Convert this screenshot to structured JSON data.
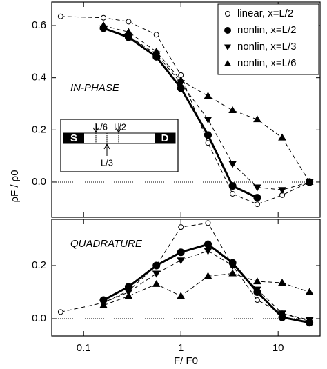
{
  "chart_data": [
    {
      "type": "line",
      "ylabel": "ρF / ρ0",
      "annotation": "IN-PHASE",
      "inset_labels": [
        "S",
        "D",
        "L/6",
        "L/2",
        "L/3"
      ],
      "legend": "upper right",
      "xscale": "log",
      "x": [
        0.058,
        0.16,
        0.29,
        0.56,
        1,
        1.9,
        3.4,
        6.1,
        11,
        21
      ],
      "xlim": [
        0.047,
        27
      ],
      "xticks": [
        0.1,
        1,
        10
      ],
      "ylim": [
        -0.135,
        0.69
      ],
      "yticks": [
        {
          "value": 0,
          "label": "0.0"
        },
        0.2,
        0.4,
        0.6
      ],
      "series": [
        {
          "name": "linear, x=L/2",
          "color": "#000000",
          "marker": "open-circle",
          "linestyle": "dashed",
          "linewidth": 1,
          "values": [
            0.635,
            0.63,
            0.615,
            0.565,
            0.41,
            0.15,
            -0.045,
            -0.085,
            -0.05,
            0.0
          ]
        },
        {
          "name": "nonlin, x=L/2",
          "color": "#000000",
          "marker": "circle",
          "linestyle": "solid",
          "linewidth": 3,
          "values": [
            null,
            0.59,
            0.555,
            0.48,
            0.36,
            0.18,
            -0.015,
            -0.06,
            null,
            0.0
          ]
        },
        {
          "name": "nonlin, x=L/3",
          "color": "#000000",
          "marker": "triangle-down",
          "linestyle": "dashed",
          "linewidth": 1,
          "values": [
            null,
            0.59,
            0.56,
            0.49,
            0.38,
            0.24,
            0.07,
            -0.02,
            -0.03,
            0.0
          ]
        },
        {
          "name": "nonlin, x=L/6",
          "color": "#000000",
          "marker": "triangle-up",
          "linestyle": "dashed",
          "linewidth": 1,
          "values": [
            null,
            0.6,
            0.575,
            0.5,
            0.39,
            0.33,
            0.275,
            0.24,
            0.17,
            0.0
          ]
        }
      ]
    },
    {
      "type": "line",
      "annotation": "QUADRATURE",
      "xlabel": "F/ F0",
      "xscale": "log",
      "x": [
        0.058,
        0.16,
        0.29,
        0.56,
        1,
        1.9,
        3.4,
        6.1,
        11,
        21
      ],
      "xlim": [
        0.047,
        27
      ],
      "xticks": [
        0.1,
        1,
        10
      ],
      "ylim": [
        -0.065,
        0.374
      ],
      "yticks": [
        {
          "value": 0,
          "label": "0.0"
        },
        0.2
      ],
      "series": [
        {
          "name": "linear, x=L/2",
          "color": "#000000",
          "marker": "open-circle",
          "linestyle": "dashed",
          "linewidth": 1,
          "values": [
            0.025,
            0.06,
            0.105,
            0.2,
            0.345,
            0.36,
            0.2,
            0.07,
            0.02,
            -0.01
          ]
        },
        {
          "name": "nonlin, x=L/2",
          "color": "#000000",
          "marker": "circle",
          "linestyle": "solid",
          "linewidth": 3,
          "values": [
            null,
            0.07,
            0.12,
            0.2,
            0.25,
            0.28,
            0.21,
            0.1,
            0.005,
            -0.015
          ]
        },
        {
          "name": "nonlin, x=L/3",
          "color": "#000000",
          "marker": "triangle-down",
          "linestyle": "dashed",
          "linewidth": 1,
          "values": [
            null,
            0.06,
            0.1,
            0.17,
            0.22,
            0.255,
            0.2,
            0.11,
            0.02,
            -0.005
          ]
        },
        {
          "name": "nonlin, x=L/6",
          "color": "#000000",
          "marker": "triangle-up",
          "linestyle": "dashed",
          "linewidth": 1,
          "values": [
            null,
            0.05,
            0.085,
            0.13,
            0.085,
            0.16,
            0.17,
            0.14,
            0.135,
            0.1
          ]
        }
      ]
    }
  ]
}
